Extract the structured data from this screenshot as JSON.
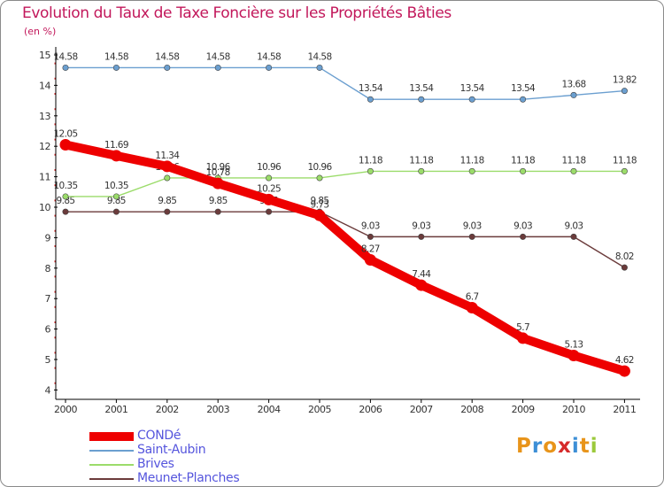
{
  "chart_data": {
    "type": "line",
    "title": "Evolution du Taux de Taxe Foncière sur les Propriétés Bâties",
    "ylabel": "(en %)",
    "xlabel": "",
    "x": [
      "2000",
      "2001",
      "2002",
      "2003",
      "2004",
      "2005",
      "2006",
      "2007",
      "2008",
      "2009",
      "2010",
      "2011"
    ],
    "ylim": [
      4,
      15
    ],
    "yticks": [
      4,
      5,
      6,
      7,
      8,
      9,
      10,
      11,
      12,
      13,
      14,
      15
    ],
    "grid": false,
    "legend_position": "bottom-left",
    "series": [
      {
        "name": "CONDé",
        "color": "#ee0000",
        "values": [
          12.05,
          11.69,
          11.34,
          10.78,
          10.25,
          9.73,
          8.27,
          7.44,
          6.7,
          5.7,
          5.13,
          4.62
        ],
        "labels": [
          "12.05",
          "11.69",
          "11.34",
          "10.78",
          "10.25",
          "9.73",
          "8.27",
          "7.44",
          "6.7",
          "5.7",
          "5.13",
          "4.62"
        ]
      },
      {
        "name": "Saint-Aubin",
        "color": "#6b9fd0",
        "values": [
          14.58,
          14.58,
          14.58,
          14.58,
          14.58,
          14.58,
          13.54,
          13.54,
          13.54,
          13.54,
          13.68,
          13.82
        ],
        "labels": [
          "14.58",
          "14.58",
          "14.58",
          "14.58",
          "14.58",
          "14.58",
          "13.54",
          "13.54",
          "13.54",
          "13.54",
          "13.68",
          "13.82"
        ]
      },
      {
        "name": "Brives",
        "color": "#9bdc6a",
        "values": [
          10.35,
          10.35,
          10.96,
          10.96,
          10.96,
          10.96,
          11.18,
          11.18,
          11.18,
          11.18,
          11.18,
          11.18
        ],
        "labels": [
          "10.35",
          "10.35",
          "10.96",
          "10.96",
          "10.96",
          "10.96",
          "11.18",
          "11.18",
          "11.18",
          "11.18",
          "11.18",
          "11.18"
        ]
      },
      {
        "name": "Meunet-Planches",
        "color": "#6b3b3b",
        "values": [
          9.85,
          9.85,
          9.85,
          9.85,
          9.85,
          9.85,
          9.03,
          9.03,
          9.03,
          9.03,
          9.03,
          8.02
        ],
        "labels": [
          "9.85",
          "9.85",
          "9.85",
          "9.85",
          "9.85",
          "9.85",
          "9.03",
          "9.03",
          "9.03",
          "9.03",
          "9.03",
          "8.02"
        ]
      }
    ]
  },
  "logo": {
    "text": "Proxiti",
    "colors": [
      "#e8941a",
      "#3d8fd6",
      "#e8941a",
      "#d62b2b",
      "#3d8fd6",
      "#e8941a",
      "#9bc93b"
    ]
  }
}
